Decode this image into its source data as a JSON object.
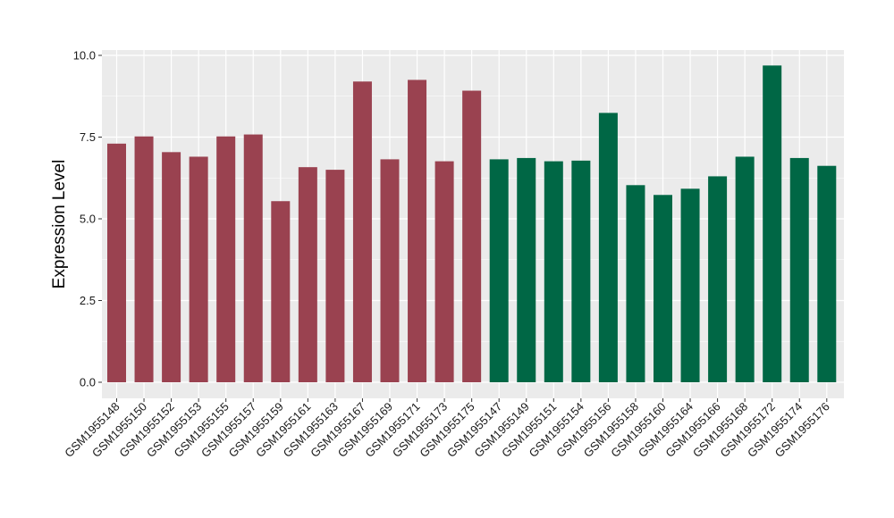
{
  "chart_data": {
    "type": "bar",
    "title": "",
    "xlabel": "",
    "ylabel": "Expression Level",
    "ylim": [
      0,
      10
    ],
    "yticks": [
      "0.0",
      "2.5",
      "5.0",
      "7.5",
      "10.0"
    ],
    "ytick_values": [
      0,
      2.5,
      5,
      7.5,
      10
    ],
    "grid": true,
    "legend": "none",
    "colors": {
      "group1": "#9A4250",
      "group2": "#006745",
      "panel": "#EBEBEB",
      "grid": "#FFFFFF"
    },
    "categories": [
      "GSM1955148",
      "GSM1955150",
      "GSM1955152",
      "GSM1955153",
      "GSM1955155",
      "GSM1955157",
      "GSM1955159",
      "GSM1955161",
      "GSM1955163",
      "GSM1955167",
      "GSM1955169",
      "GSM1955171",
      "GSM1955173",
      "GSM1955175",
      "GSM1955147",
      "GSM1955149",
      "GSM1955151",
      "GSM1955154",
      "GSM1955156",
      "GSM1955158",
      "GSM1955160",
      "GSM1955164",
      "GSM1955166",
      "GSM1955168",
      "GSM1955172",
      "GSM1955174",
      "GSM1955176"
    ],
    "values": [
      7.3,
      7.52,
      7.04,
      6.9,
      7.52,
      7.58,
      5.54,
      6.58,
      6.5,
      9.2,
      6.82,
      9.25,
      6.76,
      8.92,
      6.82,
      6.86,
      6.76,
      6.78,
      8.24,
      6.03,
      5.73,
      5.92,
      6.3,
      6.9,
      9.69,
      6.86,
      6.62
    ],
    "group": [
      1,
      1,
      1,
      1,
      1,
      1,
      1,
      1,
      1,
      1,
      1,
      1,
      1,
      1,
      2,
      2,
      2,
      2,
      2,
      2,
      2,
      2,
      2,
      2,
      2,
      2,
      2
    ]
  }
}
